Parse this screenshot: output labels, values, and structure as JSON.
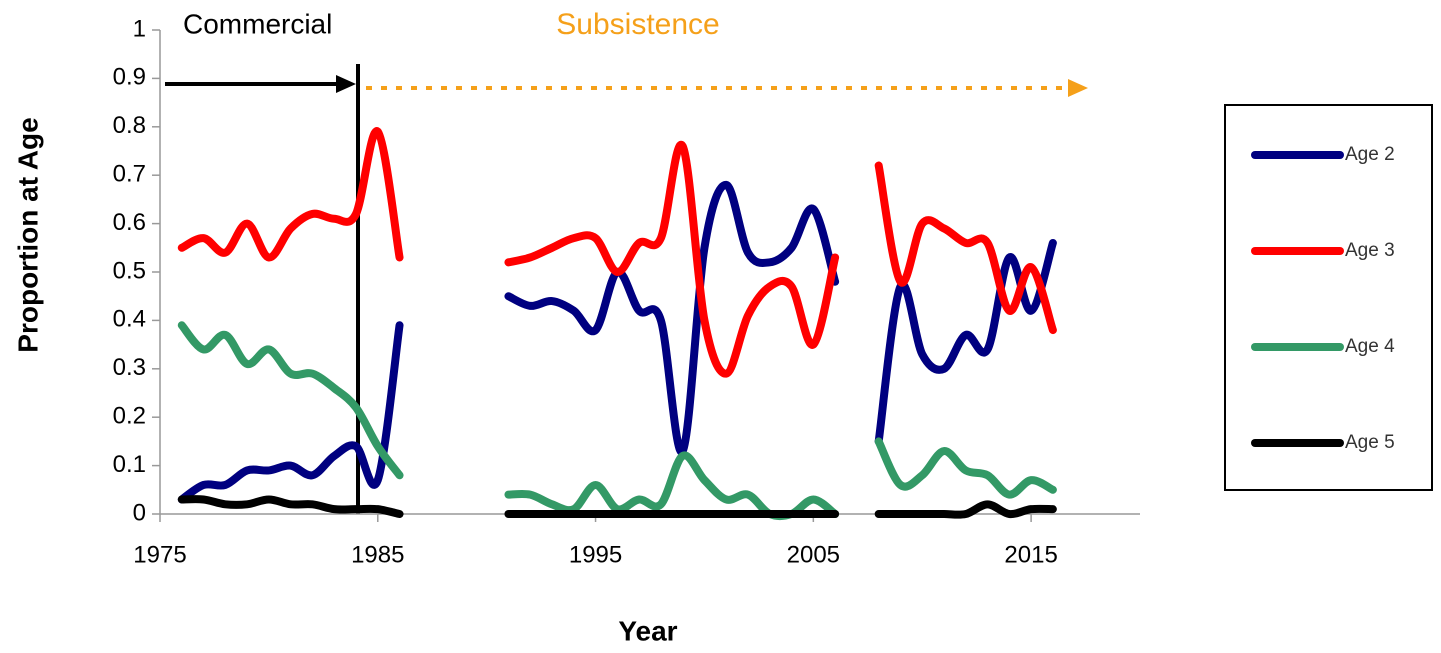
{
  "chart_data": {
    "type": "line",
    "annotations": [
      "Commercial",
      "Subsistence"
    ],
    "x_label": "Year",
    "y_label": "Proportion at Age",
    "x": [
      1976,
      1977,
      1978,
      1979,
      1980,
      1981,
      1982,
      1983,
      1984,
      1985,
      1986,
      1987,
      1988,
      1989,
      1990,
      1991,
      1992,
      1993,
      1994,
      1995,
      1996,
      1997,
      1998,
      1999,
      2000,
      2001,
      2002,
      2003,
      2004,
      2005,
      2006,
      2007,
      2008,
      2009,
      2010,
      2011,
      2012,
      2013,
      2014,
      2015,
      2016
    ],
    "series": [
      {
        "name": "Age 2",
        "color": "#000080",
        "values": [
          0.03,
          0.06,
          0.06,
          0.09,
          0.09,
          0.1,
          0.08,
          0.12,
          0.14,
          0.07,
          0.39,
          null,
          null,
          null,
          null,
          0.45,
          0.43,
          0.44,
          0.42,
          0.38,
          0.5,
          0.42,
          0.4,
          0.13,
          0.55,
          0.68,
          0.54,
          0.52,
          0.55,
          0.63,
          0.48,
          null,
          0.15,
          0.47,
          0.33,
          0.3,
          0.37,
          0.34,
          0.53,
          0.42,
          0.56
        ]
      },
      {
        "name": "Age 3",
        "color": "#ff0000",
        "values": [
          0.55,
          0.57,
          0.54,
          0.6,
          0.53,
          0.59,
          0.62,
          0.61,
          0.62,
          0.79,
          0.53,
          null,
          null,
          null,
          null,
          0.52,
          0.53,
          0.55,
          0.57,
          0.57,
          0.5,
          0.56,
          0.57,
          0.76,
          0.4,
          0.29,
          0.41,
          0.47,
          0.47,
          0.35,
          0.53,
          null,
          0.72,
          0.48,
          0.6,
          0.59,
          0.56,
          0.56,
          0.42,
          0.51,
          0.38
        ]
      },
      {
        "name": "Age 4",
        "color": "#339966",
        "values": [
          0.39,
          0.34,
          0.37,
          0.31,
          0.34,
          0.29,
          0.29,
          0.26,
          0.22,
          0.14,
          0.08,
          null,
          null,
          null,
          null,
          0.04,
          0.04,
          0.02,
          0.01,
          0.06,
          0.01,
          0.03,
          0.02,
          0.12,
          0.07,
          0.03,
          0.04,
          0,
          0,
          0.03,
          0,
          null,
          0.15,
          0.06,
          0.08,
          0.13,
          0.09,
          0.08,
          0.04,
          0.07,
          0.05
        ]
      },
      {
        "name": "Age 5",
        "color": "#000000",
        "values": [
          0.03,
          0.03,
          0.02,
          0.02,
          0.03,
          0.02,
          0.02,
          0.01,
          0.01,
          0.01,
          0,
          null,
          null,
          null,
          null,
          0,
          0,
          0,
          0,
          0,
          0,
          0,
          0,
          0,
          0,
          0,
          0,
          0,
          0,
          0,
          0,
          null,
          0,
          0,
          0,
          0,
          0,
          0.02,
          0,
          0.01,
          0.01
        ]
      }
    ],
    "xlim": [
      1975,
      2020
    ],
    "xticks": [
      1975,
      1985,
      1995,
      2005,
      2015
    ],
    "ylim": [
      0,
      1
    ],
    "yticks": [
      0,
      0.1,
      0.2,
      0.3,
      0.4,
      0.5,
      0.6,
      0.7,
      0.8,
      0.9,
      1
    ],
    "legend": "right"
  }
}
